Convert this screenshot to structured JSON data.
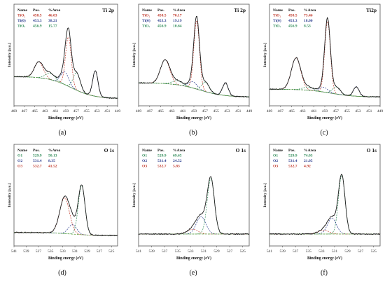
{
  "chart_data": [
    {
      "type": "line",
      "subplot_label": "(a)",
      "title": "Ti 2p",
      "xlabel": "Binding energy (eV)",
      "ylabel": "Intensity [a.u.]",
      "xlim": [
        469,
        449
      ],
      "xticks": [
        "469",
        "467",
        "465",
        "463",
        "461",
        "459",
        "457",
        "455",
        "453",
        "451",
        "449"
      ],
      "table": {
        "headers": [
          "Name",
          "Pos.",
          "%Area"
        ],
        "rows": [
          {
            "name": "TiO₂",
            "pos": "458.5",
            "area": "46.03",
            "color": "#c0392b"
          },
          {
            "name": "Ti(0)",
            "pos": "453.3",
            "area": "38.21",
            "color": "#2c3e8f"
          },
          {
            "name": "TiOₓ",
            "pos": "456.9",
            "area": "15.77",
            "color": "#2e8b57"
          }
        ]
      },
      "fit_peaks": [
        {
          "center": 458.5,
          "fwhm": 1.3,
          "height": 0.62,
          "color": "#c0392b"
        },
        {
          "center": 464.2,
          "fwhm": 2.0,
          "height": 0.2,
          "color": "#c0392b"
        },
        {
          "center": 453.3,
          "fwhm": 1.2,
          "height": 0.32,
          "color": "#2c3e8f"
        },
        {
          "center": 459.2,
          "fwhm": 1.8,
          "height": 0.16,
          "color": "#2c3e8f"
        },
        {
          "center": 456.9,
          "fwhm": 1.6,
          "height": 0.22,
          "color": "#2e8b57"
        },
        {
          "center": 462.0,
          "fwhm": 2.2,
          "height": 0.08,
          "color": "#2e8b57"
        }
      ],
      "background": {
        "left": 0.3,
        "right": 0.02
      }
    },
    {
      "type": "line",
      "subplot_label": "(b)",
      "title": "Ti 2p",
      "xlabel": "Binding energy (eV)",
      "ylabel": "Intensity [a.u.]",
      "xlim": [
        469,
        449
      ],
      "xticks": [
        "469",
        "467",
        "465",
        "463",
        "461",
        "459",
        "457",
        "455",
        "453",
        "451",
        "449"
      ],
      "table": {
        "headers": [
          "Name",
          "Pos.",
          "%Area"
        ],
        "rows": [
          {
            "name": "TiO₂",
            "pos": "458.5",
            "area": "70.17",
            "color": "#c0392b"
          },
          {
            "name": "Ti(0)",
            "pos": "453.3",
            "area": "19.19",
            "color": "#2c3e8f"
          },
          {
            "name": "TiOₓ",
            "pos": "456.9",
            "area": "10.64",
            "color": "#2e8b57"
          }
        ]
      },
      "fit_peaks": [
        {
          "center": 458.5,
          "fwhm": 1.2,
          "height": 0.86,
          "color": "#c0392b"
        },
        {
          "center": 464.2,
          "fwhm": 2.0,
          "height": 0.3,
          "color": "#c0392b"
        },
        {
          "center": 453.3,
          "fwhm": 1.2,
          "height": 0.16,
          "color": "#2c3e8f"
        },
        {
          "center": 459.2,
          "fwhm": 1.8,
          "height": 0.08,
          "color": "#2c3e8f"
        },
        {
          "center": 456.9,
          "fwhm": 1.6,
          "height": 0.12,
          "color": "#2e8b57"
        },
        {
          "center": 462.0,
          "fwhm": 2.2,
          "height": 0.05,
          "color": "#2e8b57"
        }
      ],
      "background": {
        "left": 0.22,
        "right": 0.04
      }
    },
    {
      "type": "line",
      "subplot_label": "(c)",
      "title": "Ti2p",
      "xlabel": "Binding energy (eV)",
      "ylabel": "Intensity [a.u.]",
      "xlim": [
        469,
        449
      ],
      "xticks": [
        "469",
        "467",
        "465",
        "463",
        "461",
        "459",
        "457",
        "455",
        "453",
        "451",
        "449"
      ],
      "table": {
        "headers": [
          "Name",
          "Pos.",
          "%Area"
        ],
        "rows": [
          {
            "name": "TiO₂",
            "pos": "458.5",
            "area": "73.46",
            "color": "#c0392b"
          },
          {
            "name": "Ti(0)",
            "pos": "453.3",
            "area": "18.00",
            "color": "#2c3e8f"
          },
          {
            "name": "TiOₓ",
            "pos": "456.9",
            "area": "8.53",
            "color": "#2e8b57"
          }
        ]
      },
      "fit_peaks": [
        {
          "center": 458.5,
          "fwhm": 1.2,
          "height": 0.9,
          "color": "#c0392b"
        },
        {
          "center": 464.2,
          "fwhm": 2.0,
          "height": 0.4,
          "color": "#c0392b"
        },
        {
          "center": 453.3,
          "fwhm": 1.2,
          "height": 0.12,
          "color": "#2c3e8f"
        },
        {
          "center": 459.2,
          "fwhm": 1.8,
          "height": 0.06,
          "color": "#2c3e8f"
        },
        {
          "center": 456.9,
          "fwhm": 1.6,
          "height": 0.09,
          "color": "#2e8b57"
        },
        {
          "center": 462.0,
          "fwhm": 2.2,
          "height": 0.04,
          "color": "#2e8b57"
        }
      ],
      "background": {
        "left": 0.14,
        "right": 0.04
      }
    },
    {
      "type": "line",
      "subplot_label": "(d)",
      "title": "O 1s",
      "xlabel": "Binding energy (eV)",
      "ylabel": "Intensity [a.u.]",
      "xlim": [
        541,
        524
      ],
      "xticks": [
        "541",
        "539",
        "537",
        "535",
        "533",
        "531",
        "529",
        "527",
        "525"
      ],
      "table": {
        "headers": [
          "Name",
          "Pos.",
          "%Area"
        ],
        "rows": [
          {
            "name": "O1",
            "pos": "529.9",
            "area": "50.13",
            "color": "#2e8b57"
          },
          {
            "name": "O2",
            "pos": "531.4",
            "area": "8.35",
            "color": "#2c3e8f"
          },
          {
            "name": "O3",
            "pos": "532.7",
            "area": "41.52",
            "color": "#c0392b"
          }
        ]
      },
      "fit_peaks": [
        {
          "center": 529.9,
          "fwhm": 1.3,
          "height": 0.62,
          "color": "#2e8b57"
        },
        {
          "center": 531.4,
          "fwhm": 1.6,
          "height": 0.12,
          "color": "#2c3e8f"
        },
        {
          "center": 532.7,
          "fwhm": 1.9,
          "height": 0.45,
          "color": "#c0392b"
        }
      ],
      "background": {
        "left": 0.1,
        "right": 0.06
      }
    },
    {
      "type": "line",
      "subplot_label": "(e)",
      "title": "O 1s",
      "xlabel": "Binding energy (eV)",
      "ylabel": "Intensity [a.u.]",
      "xlim": [
        541,
        524
      ],
      "xticks": [
        "541",
        "539",
        "537",
        "535",
        "533",
        "531",
        "529",
        "527",
        "525"
      ],
      "table": {
        "headers": [
          "Name",
          "Pos.",
          "%Area"
        ],
        "rows": [
          {
            "name": "O1",
            "pos": "529.9",
            "area": "69.65",
            "color": "#2e8b57"
          },
          {
            "name": "O2",
            "pos": "531.4",
            "area": "24.52",
            "color": "#2c3e8f"
          },
          {
            "name": "O3",
            "pos": "532.7",
            "area": "5.83",
            "color": "#c0392b"
          }
        ]
      },
      "fit_peaks": [
        {
          "center": 529.9,
          "fwhm": 1.3,
          "height": 0.7,
          "color": "#2e8b57"
        },
        {
          "center": 531.4,
          "fwhm": 1.7,
          "height": 0.22,
          "color": "#2c3e8f"
        },
        {
          "center": 532.7,
          "fwhm": 1.9,
          "height": 0.06,
          "color": "#c0392b"
        }
      ],
      "background": {
        "left": 0.08,
        "right": 0.08
      }
    },
    {
      "type": "line",
      "subplot_label": "(f)",
      "title": "O 1s",
      "xlabel": "Binding energy (eV)",
      "ylabel": "Intensity [a.u.]",
      "xlim": [
        541,
        524
      ],
      "xticks": [
        "541",
        "539",
        "537",
        "535",
        "533",
        "531",
        "529",
        "527",
        "525"
      ],
      "table": {
        "headers": [
          "Name",
          "Pos.",
          "%Area"
        ],
        "rows": [
          {
            "name": "O1",
            "pos": "529.9",
            "area": "74.03",
            "color": "#2e8b57"
          },
          {
            "name": "O2",
            "pos": "531.4",
            "area": "21.05",
            "color": "#2c3e8f"
          },
          {
            "name": "O3",
            "pos": "532.7",
            "area": "4.92",
            "color": "#c0392b"
          }
        ]
      },
      "fit_peaks": [
        {
          "center": 529.9,
          "fwhm": 1.2,
          "height": 0.74,
          "color": "#2e8b57"
        },
        {
          "center": 531.4,
          "fwhm": 1.6,
          "height": 0.2,
          "color": "#2c3e8f"
        },
        {
          "center": 532.7,
          "fwhm": 1.9,
          "height": 0.05,
          "color": "#c0392b"
        }
      ],
      "background": {
        "left": 0.08,
        "right": 0.08
      }
    }
  ]
}
